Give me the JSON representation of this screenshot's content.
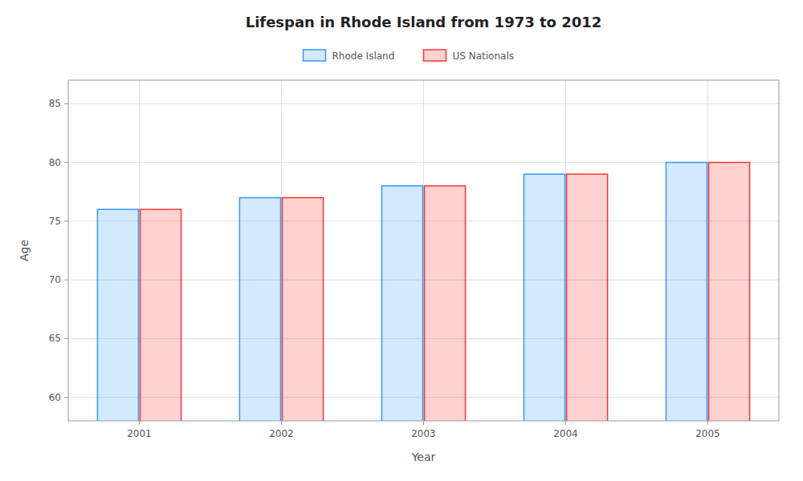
{
  "chart_data": {
    "type": "bar",
    "title": "Lifespan in Rhode Island from 1973 to 2012",
    "x_label": "Year",
    "y_label": "Age",
    "categories": [
      "2001",
      "2002",
      "2003",
      "2004",
      "2005"
    ],
    "series": [
      {
        "name": "Rhode Island",
        "color": "#3399ff",
        "values": [
          76,
          77,
          78,
          79,
          80
        ]
      },
      {
        "name": "US Nationals",
        "color": "#ff3333",
        "values": [
          76,
          77,
          78,
          79,
          80
        ]
      }
    ],
    "ylim": [
      58,
      87
    ],
    "yticks": [
      60,
      65,
      70,
      75,
      80,
      85
    ],
    "grid": true,
    "legend": "top"
  }
}
